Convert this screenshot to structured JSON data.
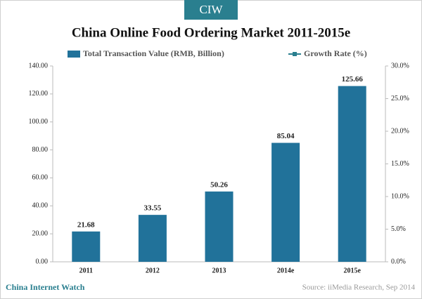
{
  "chart_data": {
    "type": "bar",
    "logo": "CIW",
    "title": "China Online Food Ordering Market 2011-2015e",
    "categories": [
      "2011",
      "2012",
      "2013",
      "2014e",
      "2015e"
    ],
    "series": [
      {
        "name": "Total Transaction Value (RMB, Billion)",
        "color": "#21729a",
        "values": [
          21.68,
          33.55,
          50.26,
          85.04,
          125.66
        ]
      },
      {
        "name": "Growth Rate (%)",
        "color": "#2a7f8f",
        "axis": "y2",
        "values": [
          null,
          null,
          null,
          null,
          null
        ]
      }
    ],
    "ylim": [
      0,
      140
    ],
    "yticks": [
      {
        "value": 0,
        "label": "0.00"
      },
      {
        "value": 20,
        "label": "20.00"
      },
      {
        "value": 40,
        "label": "40.00"
      },
      {
        "value": 60,
        "label": "60.00"
      },
      {
        "value": 80,
        "label": "80.00"
      },
      {
        "value": 100,
        "label": "100.00"
      },
      {
        "value": 120,
        "label": "120.00"
      },
      {
        "value": 140,
        "label": "140.00"
      }
    ],
    "y2lim": [
      0,
      30
    ],
    "y2ticks": [
      {
        "value": 0,
        "label": "0.0%"
      },
      {
        "value": 5,
        "label": "5.0%"
      },
      {
        "value": 10,
        "label": "10.0%"
      },
      {
        "value": 15,
        "label": "15.0%"
      },
      {
        "value": 20,
        "label": "20.0%"
      },
      {
        "value": 25,
        "label": "25.0%"
      },
      {
        "value": 30,
        "label": "30.0%"
      }
    ],
    "legend": "top",
    "brand": "China Internet Watch",
    "source": "Source: iiMedia Research, Sep 2014"
  }
}
